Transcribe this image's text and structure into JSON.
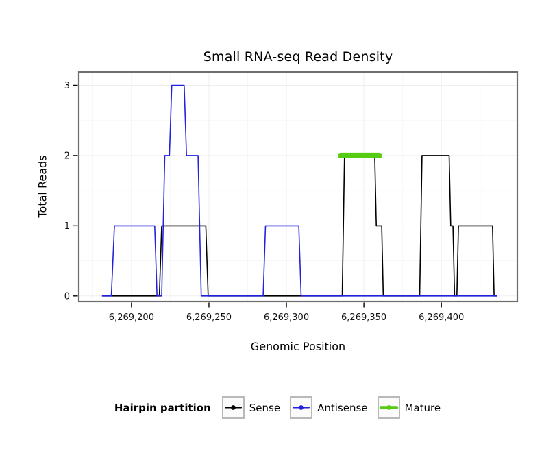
{
  "chart_data": {
    "type": "line",
    "subtype": "step",
    "title": "Small RNA-seq Read Density",
    "xlabel": "Genomic Position",
    "ylabel": "Total Reads",
    "xlim": [
      6269166,
      6269449
    ],
    "ylim": [
      -0.08,
      3.19
    ],
    "grid": true,
    "legend_position": "bottom",
    "legend_title": "Hairpin partition",
    "x_ticks": [
      {
        "value": 6269200,
        "label": "6,269,200"
      },
      {
        "value": 6269250,
        "label": "6,269,250"
      },
      {
        "value": 6269300,
        "label": "6,269,300"
      },
      {
        "value": 6269350,
        "label": "6,269,350"
      },
      {
        "value": 6269400,
        "label": "6,269,400"
      }
    ],
    "y_ticks": [
      {
        "value": 0,
        "label": "0"
      },
      {
        "value": 1,
        "label": "1"
      },
      {
        "value": 2,
        "label": "2"
      },
      {
        "value": 3,
        "label": "3"
      }
    ],
    "x_minor_ticks": [
      6269175,
      6269225,
      6269275,
      6269325,
      6269375,
      6269425
    ],
    "y_minor_ticks": [
      0.5,
      1.5,
      2.5
    ],
    "series": [
      {
        "name": "Sense",
        "color": "#000000",
        "stroke_width": 1.6,
        "points": [
          [
            6269181,
            0
          ],
          [
            6269218,
            0
          ],
          [
            6269219.5,
            1
          ],
          [
            6269248,
            1
          ],
          [
            6269249.5,
            0
          ],
          [
            6269336,
            0
          ],
          [
            6269337.5,
            2
          ],
          [
            6269357,
            2
          ],
          [
            6269358,
            1
          ],
          [
            6269361.5,
            1
          ],
          [
            6269362.5,
            0
          ],
          [
            6269386,
            0
          ],
          [
            6269387.5,
            2
          ],
          [
            6269405,
            2
          ],
          [
            6269406,
            1
          ],
          [
            6269407.5,
            1
          ],
          [
            6269408.5,
            0
          ],
          [
            6269410,
            0
          ],
          [
            6269411,
            1
          ],
          [
            6269433,
            1
          ],
          [
            6269434,
            0
          ],
          [
            6269436,
            0
          ]
        ]
      },
      {
        "name": "Antisense",
        "color": "#2222DD",
        "stroke_width": 1.6,
        "points": [
          [
            6269181,
            0
          ],
          [
            6269187,
            0
          ],
          [
            6269189,
            1
          ],
          [
            6269215,
            1
          ],
          [
            6269216.5,
            0
          ],
          [
            6269219.5,
            0
          ],
          [
            6269221.5,
            2
          ],
          [
            6269224.5,
            2
          ],
          [
            6269226,
            3
          ],
          [
            6269234,
            3
          ],
          [
            6269235.5,
            2
          ],
          [
            6269243,
            2
          ],
          [
            6269245,
            0
          ],
          [
            6269285,
            0
          ],
          [
            6269286.5,
            1
          ],
          [
            6269308,
            1
          ],
          [
            6269309.5,
            0
          ],
          [
            6269436,
            0
          ]
        ]
      },
      {
        "name": "Mature",
        "color": "#55CC11",
        "stroke_width": 8,
        "linecap": "round",
        "points": [
          [
            6269335,
            2
          ],
          [
            6269360,
            2
          ]
        ]
      }
    ]
  },
  "style": {
    "panel_border_color": "#6E6E6E",
    "grid_major_color": "#EFEFEF",
    "grid_minor_color": "#F7F7F7",
    "tick_color": "#000000",
    "tick_label_color": "#111111"
  }
}
